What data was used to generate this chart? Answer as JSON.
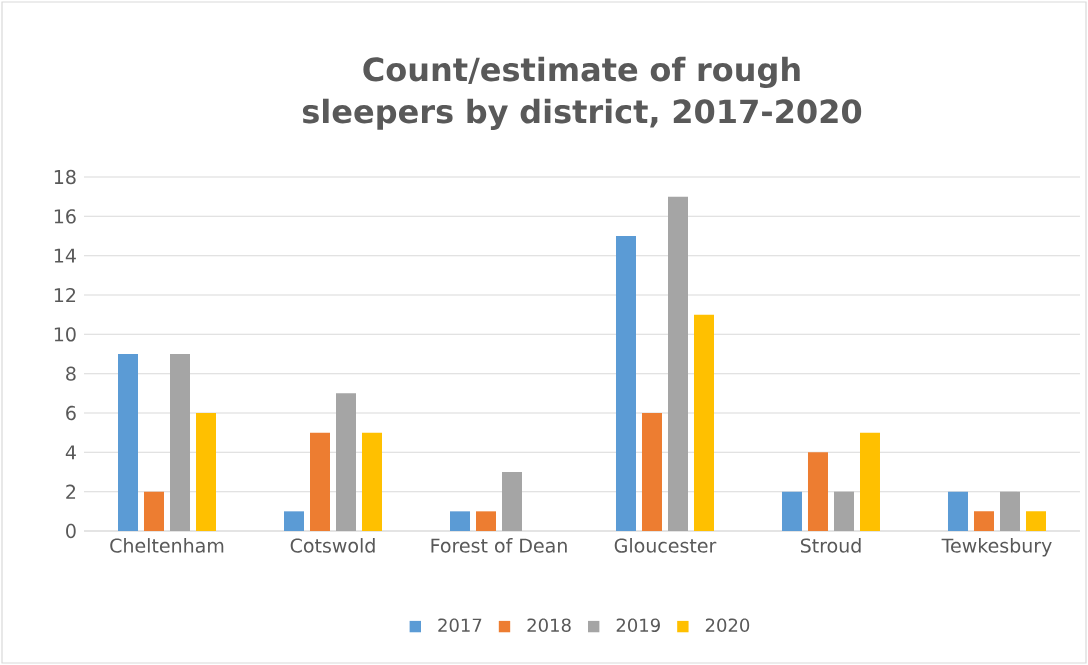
{
  "chart_data": {
    "type": "bar",
    "title": "Count/estimate of rough sleepers by district, 2017-2020",
    "categories": [
      "Cheltenham",
      "Cotswold",
      "Forest of Dean",
      "Gloucester",
      "Stroud",
      "Tewkesbury"
    ],
    "series": [
      {
        "name": "2017",
        "color": "#5b9bd5",
        "values": [
          9,
          1,
          1,
          15,
          2,
          2
        ]
      },
      {
        "name": "2018",
        "color": "#ed7d31",
        "values": [
          2,
          5,
          1,
          6,
          4,
          1
        ]
      },
      {
        "name": "2019",
        "color": "#a5a5a5",
        "values": [
          9,
          7,
          3,
          17,
          2,
          2
        ]
      },
      {
        "name": "2020",
        "color": "#ffc000",
        "values": [
          6,
          5,
          0,
          11,
          5,
          1
        ]
      }
    ],
    "ylim": [
      0,
      18
    ],
    "yticks": [
      0,
      2,
      4,
      6,
      8,
      10,
      12,
      14,
      16,
      18
    ],
    "grid": "y",
    "legend": "bottom"
  }
}
